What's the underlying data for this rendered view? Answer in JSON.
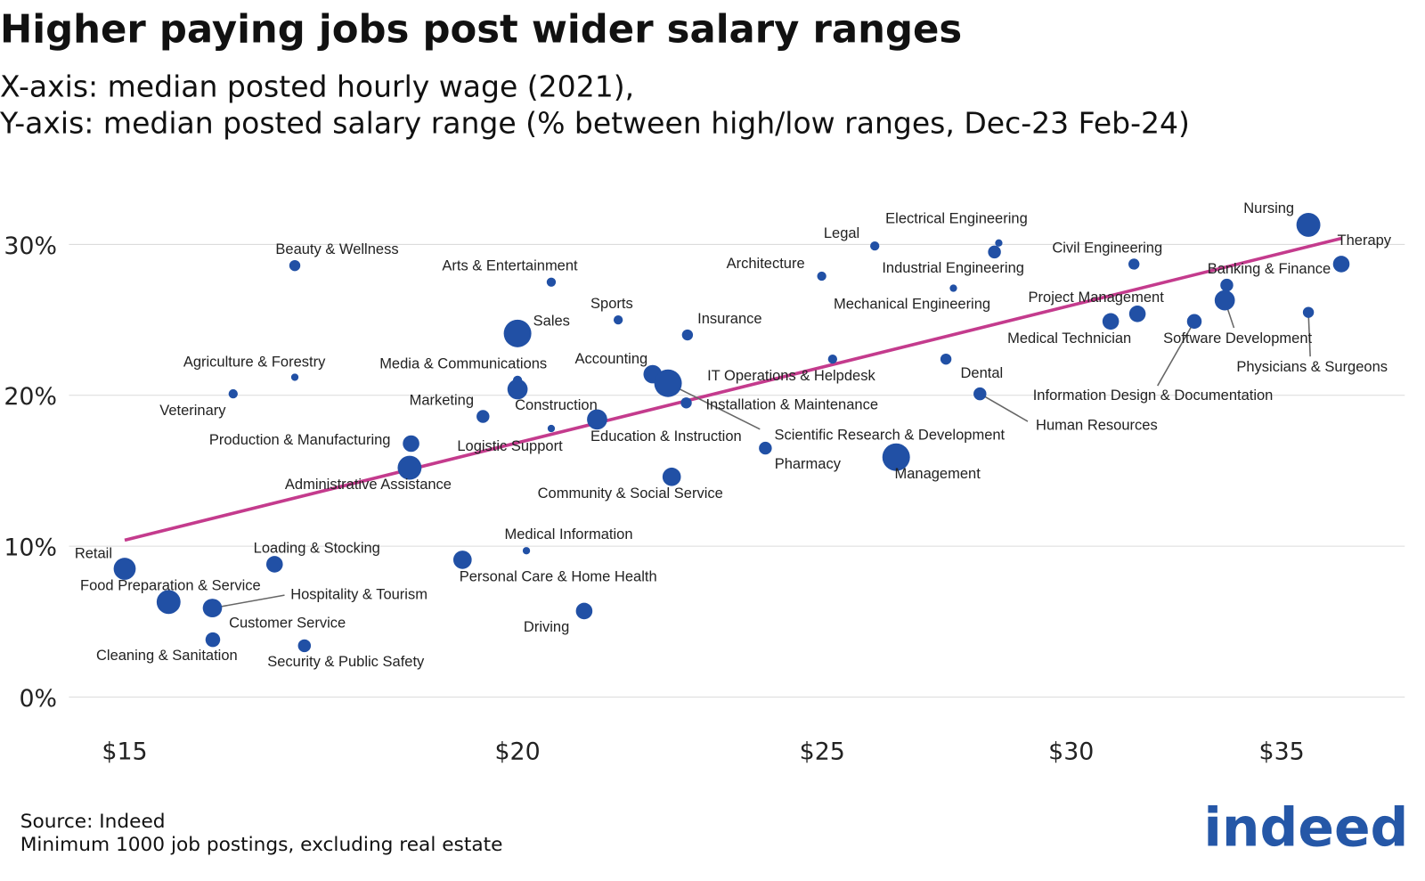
{
  "chart_data": {
    "type": "scatter",
    "title": "Higher paying jobs post wider salary ranges",
    "subtitle": [
      "X-axis: median posted hourly wage (2021),",
      "Y-axis: median posted salary range (% between high/low ranges, Dec-23 Feb-24)"
    ],
    "xlog": true,
    "xlim": [
      14.4,
      38.3
    ],
    "ylim": [
      0,
      32
    ],
    "xticks": [
      {
        "value": 15,
        "label": "$15"
      },
      {
        "value": 20,
        "label": "$20"
      },
      {
        "value": 25,
        "label": "$25"
      },
      {
        "value": 30,
        "label": "$30"
      },
      {
        "value": 35,
        "label": "$35"
      }
    ],
    "yticks": [
      {
        "value": 0,
        "label": "0%"
      },
      {
        "value": 10,
        "label": "10%"
      },
      {
        "value": 20,
        "label": "20%"
      },
      {
        "value": 30,
        "label": "30%"
      }
    ],
    "grid": true,
    "series": [
      {
        "color": "#2150a5",
        "labels": [
          "Retail",
          "Food Preparation & Service",
          "Hospitality & Tourism",
          "Customer Service",
          "Cleaning & Sanitation",
          "Loading & Stocking",
          "Security & Public Safety",
          "Beauty & Wellness",
          "Agriculture & Forestry",
          "Veterinary",
          "Production & Manufacturing",
          "Administrative Assistance",
          "Personal Care & Home Health",
          "Medical Information",
          "Driving",
          "Marketing",
          "Sales",
          "Media & Communications",
          "Construction",
          "Logistic Support",
          "Arts & Entertainment",
          "Sports",
          "Education & Instruction",
          "Accounting",
          "IT Operations & Helpdesk",
          "Installation & Maintenance",
          "Insurance",
          "Community & Social Service",
          "Pharmacy",
          "Scientific Research & Development",
          "Architecture",
          "Legal",
          "Mechanical Engineering",
          "Industrial Engineering",
          "Electrical Engineering",
          "Dental",
          "Human Resources",
          "Management",
          "Medical Technician",
          "Project Management",
          "Civil Engineering",
          "Information Design & Documentation",
          "Banking & Finance",
          "Software Development",
          "Physicians & Surgeons",
          "Nursing",
          "Therapy"
        ],
        "x": [
          15.0,
          15.49,
          16.0,
          15.99,
          16.0,
          16.74,
          17.11,
          16.99,
          16.99,
          16.24,
          18.5,
          18.48,
          19.21,
          20.13,
          21.0,
          19.5,
          20.0,
          20.0,
          20.0,
          20.5,
          20.5,
          21.53,
          21.2,
          22.08,
          25.19,
          22.63,
          22.65,
          22.39,
          23.98,
          22.33,
          24.99,
          25.98,
          27.52,
          28.36,
          28.45,
          27.37,
          28.06,
          26.39,
          30.88,
          31.49,
          31.41,
          32.83,
          33.62,
          33.57,
          35.69,
          35.69,
          36.56
        ],
        "values": [
          8.5,
          6.3,
          5.9,
          5.9,
          3.8,
          8.8,
          3.4,
          28.6,
          21.2,
          20.1,
          16.8,
          15.2,
          9.1,
          9.7,
          5.7,
          18.6,
          24.1,
          21.0,
          20.4,
          17.8,
          27.5,
          25.0,
          18.4,
          21.4,
          22.4,
          19.5,
          24.0,
          14.6,
          16.5,
          20.8,
          27.9,
          29.9,
          27.1,
          29.5,
          30.1,
          22.4,
          20.1,
          15.9,
          24.9,
          25.4,
          28.7,
          24.9,
          27.3,
          26.3,
          25.5,
          31.3,
          28.7
        ],
        "sizes": [
          12,
          13,
          10,
          10,
          8,
          9,
          7,
          6,
          4,
          5,
          9,
          13,
          10,
          4,
          9,
          7,
          15,
          5,
          11,
          4,
          5,
          5,
          11,
          10,
          5,
          6,
          6,
          10,
          7,
          15,
          5,
          5,
          4,
          7,
          4,
          6,
          7,
          15,
          9,
          9,
          6,
          8,
          7,
          11,
          6,
          13,
          9
        ]
      }
    ],
    "trend": {
      "color": "#c43b8d",
      "x": [
        15,
        36.56
      ],
      "values": [
        10.4,
        30.4
      ]
    },
    "source": "Source: Indeed",
    "note": "Minimum 1000 job postings, excluding real estate",
    "logo": "indeed"
  }
}
